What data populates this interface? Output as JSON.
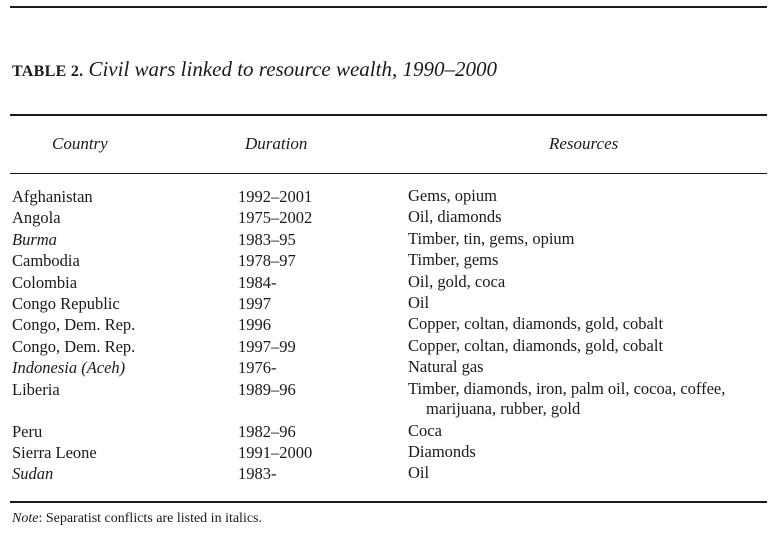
{
  "caption": {
    "label": "TABLE 2.",
    "title": "Civil wars linked to resource wealth, 1990–2000"
  },
  "table": {
    "columns": [
      "Country",
      "Duration",
      "Resources"
    ],
    "rows": [
      {
        "country": "Afghanistan",
        "duration": "1992–2001",
        "resources": "Gems, opium",
        "separatist": false
      },
      {
        "country": "Angola",
        "duration": "1975–2002",
        "resources": "Oil, diamonds",
        "separatist": false
      },
      {
        "country": "Burma",
        "duration": "1983–95",
        "resources": "Timber, tin, gems, opium",
        "separatist": true
      },
      {
        "country": "Cambodia",
        "duration": "1978–97",
        "resources": "Timber, gems",
        "separatist": false
      },
      {
        "country": "Colombia",
        "duration": "1984-",
        "resources": "Oil, gold, coca",
        "separatist": false
      },
      {
        "country": "Congo Republic",
        "duration": "1997",
        "resources": "Oil",
        "separatist": false
      },
      {
        "country": "Congo, Dem. Rep.",
        "duration": "1996",
        "resources": "Copper, coltan, diamonds, gold, cobalt",
        "separatist": false
      },
      {
        "country": "Congo, Dem. Rep.",
        "duration": "1997–99",
        "resources": "Copper, coltan, diamonds, gold, cobalt",
        "separatist": false
      },
      {
        "country": "Indonesia (Aceh)",
        "duration": "1976-",
        "resources": "Natural gas",
        "separatist": true
      },
      {
        "country": "Liberia",
        "duration": "1989–96",
        "resources": "Timber, diamonds, iron, palm oil, cocoa, coffee, marijuana, rubber, gold",
        "separatist": false
      },
      {
        "country": "Peru",
        "duration": "1982–96",
        "resources": "Coca",
        "separatist": false
      },
      {
        "country": "Sierra Leone",
        "duration": "1991–2000",
        "resources": "Diamonds",
        "separatist": false
      },
      {
        "country": "Sudan",
        "duration": "1983-",
        "resources": "Oil",
        "separatist": true
      }
    ]
  },
  "note": {
    "label": "Note",
    "text": ": Separatist conflicts are listed in italics."
  }
}
